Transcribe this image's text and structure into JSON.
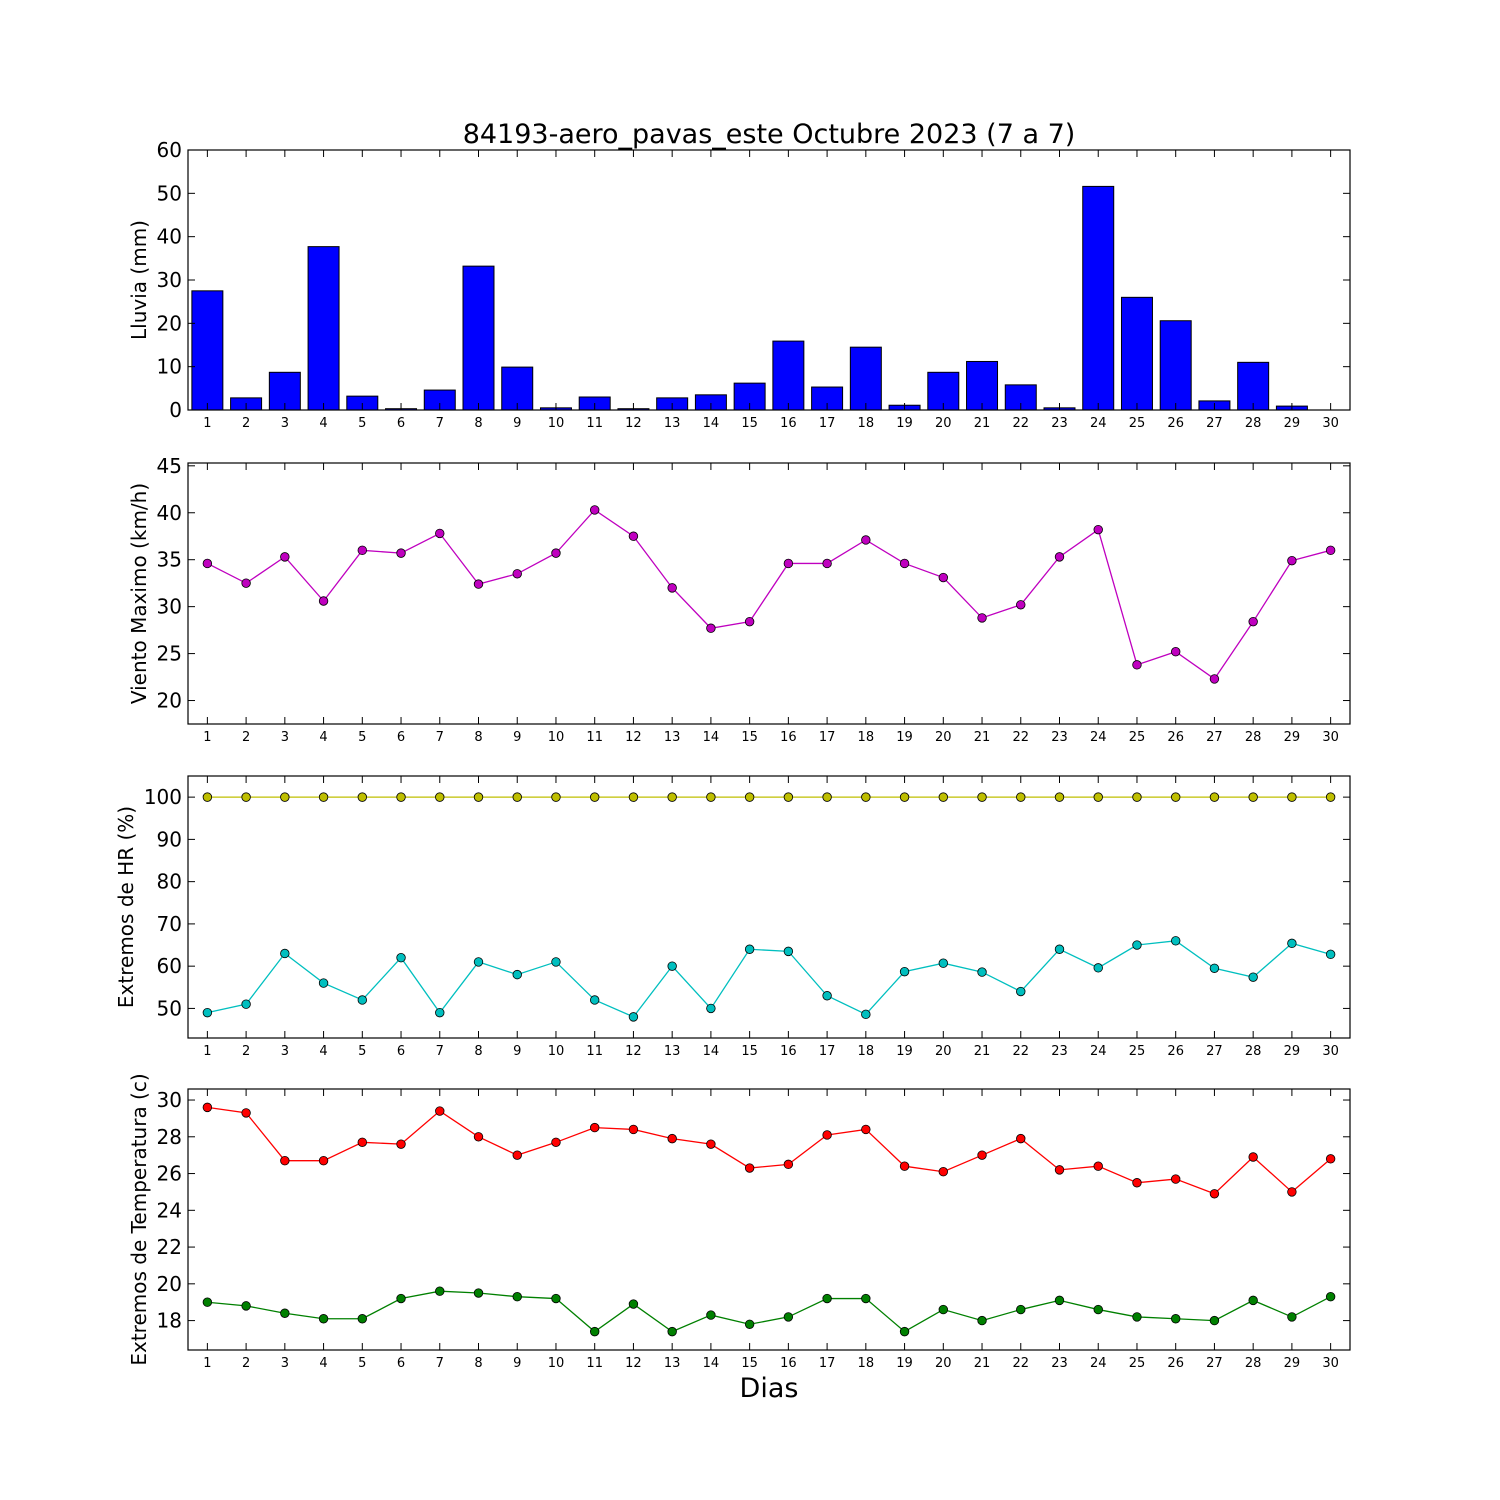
{
  "figure": {
    "title": "84193-aero_pavas_este Octubre 2023  (7 a 7)",
    "xlabel": "Dias"
  },
  "chart_data": [
    {
      "type": "bar",
      "ylabel": "Lluvia (mm)",
      "ylim": [
        0,
        60
      ],
      "yticks": [
        0,
        10,
        20,
        30,
        40,
        50,
        60
      ],
      "categories": [
        1,
        2,
        3,
        4,
        5,
        6,
        7,
        8,
        9,
        10,
        11,
        12,
        13,
        14,
        15,
        16,
        17,
        18,
        19,
        20,
        21,
        22,
        23,
        24,
        25,
        26,
        27,
        28,
        29,
        30
      ],
      "series": [
        {
          "color": "#0000ff",
          "values": [
            27.5,
            2.8,
            8.7,
            37.7,
            3.2,
            0.3,
            4.6,
            33.2,
            9.9,
            0.5,
            3.0,
            0.3,
            2.8,
            3.5,
            6.2,
            15.9,
            5.3,
            14.5,
            1.1,
            8.7,
            11.2,
            5.8,
            0.5,
            51.6,
            26.0,
            20.6,
            2.1,
            11.0,
            0.9,
            0.0
          ]
        }
      ],
      "grid": false
    },
    {
      "type": "line",
      "ylabel": "Viento Maximo (km/h)",
      "ylim": [
        17.5,
        45.3
      ],
      "yticks": [
        20,
        25,
        30,
        35,
        40,
        45
      ],
      "categories": [
        1,
        2,
        3,
        4,
        5,
        6,
        7,
        8,
        9,
        10,
        11,
        12,
        13,
        14,
        15,
        16,
        17,
        18,
        19,
        20,
        21,
        22,
        23,
        24,
        25,
        26,
        27,
        28,
        29,
        30
      ],
      "series": [
        {
          "color": "#bf00bf",
          "values": [
            34.6,
            32.5,
            35.3,
            30.6,
            36.0,
            35.7,
            37.8,
            32.4,
            33.5,
            35.7,
            40.3,
            37.5,
            32.0,
            27.7,
            28.4,
            34.6,
            34.6,
            37.1,
            34.6,
            33.1,
            28.8,
            30.2,
            35.3,
            38.2,
            23.8,
            25.2,
            22.3,
            28.4,
            34.9,
            36.0
          ]
        }
      ],
      "grid": false
    },
    {
      "type": "line",
      "ylabel": "Extremos de HR (%)",
      "ylim": [
        43,
        105
      ],
      "yticks": [
        50,
        60,
        70,
        80,
        90,
        100
      ],
      "categories": [
        1,
        2,
        3,
        4,
        5,
        6,
        7,
        8,
        9,
        10,
        11,
        12,
        13,
        14,
        15,
        16,
        17,
        18,
        19,
        20,
        21,
        22,
        23,
        24,
        25,
        26,
        27,
        28,
        29,
        30
      ],
      "series": [
        {
          "color": "#bfbf00",
          "values": [
            100,
            100,
            100,
            100,
            100,
            100,
            100,
            100,
            100,
            100,
            100,
            100,
            100,
            100,
            100,
            100,
            100,
            100,
            100,
            100,
            100,
            100,
            100,
            100,
            100,
            100,
            100,
            100,
            100,
            100
          ]
        },
        {
          "color": "#00bfbf",
          "values": [
            49,
            51,
            63,
            56,
            52,
            62,
            49,
            61,
            58,
            61,
            52,
            48,
            60,
            50,
            64,
            63.5,
            53,
            48.6,
            58.7,
            60.7,
            58.6,
            54,
            64,
            59.6,
            65,
            66,
            59.5,
            57.4,
            65.4,
            62.8
          ]
        }
      ],
      "grid": false
    },
    {
      "type": "line",
      "ylabel": "Extremos de Temperatura (c)",
      "ylim": [
        16.4,
        30.6
      ],
      "yticks": [
        18,
        20,
        22,
        24,
        26,
        28,
        30
      ],
      "categories": [
        1,
        2,
        3,
        4,
        5,
        6,
        7,
        8,
        9,
        10,
        11,
        12,
        13,
        14,
        15,
        16,
        17,
        18,
        19,
        20,
        21,
        22,
        23,
        24,
        25,
        26,
        27,
        28,
        29,
        30
      ],
      "series": [
        {
          "color": "#ff0000",
          "values": [
            29.6,
            29.3,
            26.7,
            26.7,
            27.7,
            27.6,
            29.4,
            28.0,
            27.0,
            27.7,
            28.5,
            28.4,
            27.9,
            27.6,
            26.3,
            26.5,
            28.1,
            28.4,
            26.4,
            26.1,
            27.0,
            27.9,
            26.2,
            26.4,
            25.5,
            25.7,
            24.9,
            26.9,
            25.0,
            26.8
          ]
        },
        {
          "color": "#008000",
          "values": [
            19.0,
            18.8,
            18.4,
            18.1,
            18.1,
            19.2,
            19.6,
            19.5,
            19.3,
            19.2,
            17.4,
            18.9,
            17.4,
            18.3,
            17.8,
            18.2,
            19.2,
            19.2,
            17.4,
            18.6,
            18.0,
            18.6,
            19.1,
            18.6,
            18.2,
            18.1,
            18.0,
            19.1,
            18.2,
            19.3
          ]
        }
      ],
      "grid": false
    }
  ]
}
